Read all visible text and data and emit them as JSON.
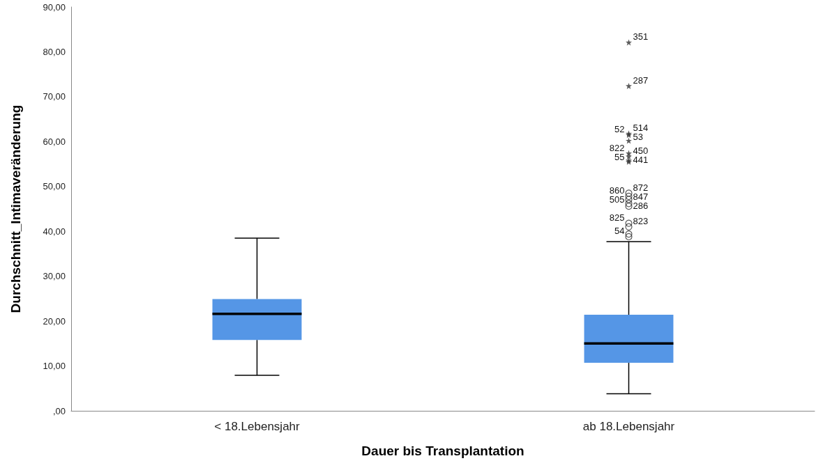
{
  "chart_data": {
    "type": "box",
    "xlabel": "Dauer bis Transplantation",
    "ylabel": "Durchschnitt_Intimaveränderung",
    "categories": [
      "< 18.Lebensjahr",
      "ab 18.Lebensjahr"
    ],
    "color": "#5596e6",
    "boxes": [
      {
        "low": 7.9,
        "q1": 15.8,
        "median": 21.6,
        "q3": 24.9,
        "high": 38.5
      },
      {
        "low": 3.8,
        "q1": 10.7,
        "median": 15.0,
        "q3": 21.4,
        "high": 37.7,
        "outliers": [
          82.1,
          72.4,
          61.8,
          61.5,
          60.2,
          57.4,
          56.7,
          55.5,
          55.8,
          48.5,
          47.8,
          47.1,
          46.2,
          45.6,
          41.8,
          41.0,
          38.8,
          39.4
        ]
      }
    ],
    "ylim": [
      0,
      90
    ],
    "yticks": [
      {
        "value": 0,
        "label": ",00"
      },
      {
        "value": 10,
        "label": "10,00"
      },
      {
        "value": 20,
        "label": "20,00"
      },
      {
        "value": 30,
        "label": "30,00"
      },
      {
        "value": 40,
        "label": "40,00"
      },
      {
        "value": 50,
        "label": "50,00"
      },
      {
        "value": 60,
        "label": "60,00"
      },
      {
        "value": 70,
        "label": "70,00"
      },
      {
        "value": 80,
        "label": "80,00"
      },
      {
        "value": 90,
        "label": "90,00"
      }
    ],
    "grid": false,
    "legend": false,
    "annotations": [
      "351",
      "287",
      "514",
      "52",
      "53",
      "822",
      "450",
      "55",
      "441",
      "872",
      "860",
      "847",
      "505",
      "286",
      "825",
      "823",
      "54"
    ]
  }
}
